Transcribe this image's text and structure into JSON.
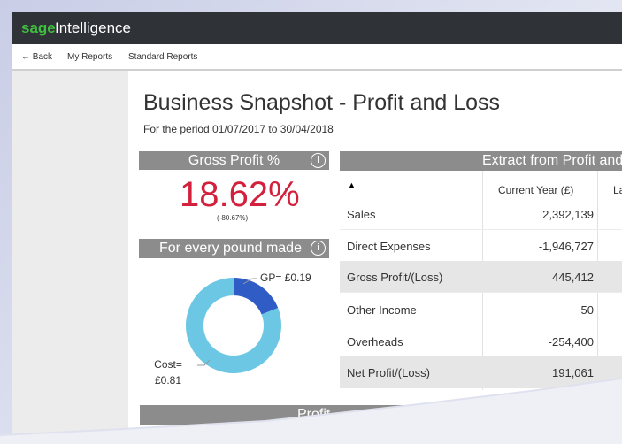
{
  "header": {
    "brand_prefix": "sage",
    "brand_suffix": "Intelligence"
  },
  "nav": [
    "← Back",
    "My Reports",
    "Standard Reports"
  ],
  "report": {
    "title": "Business Snapshot - Profit and Loss",
    "subtitle": "For the period 01/07/2017 to 30/04/2018"
  },
  "gross_profit": {
    "header": "Gross Profit %",
    "value_text": "18.62%",
    "flag": "!",
    "change": "(-80.67%)"
  },
  "pound": {
    "header": "For every pound made",
    "segments": [
      {
        "label_lines": [
          "GP= £0.19"
        ],
        "value": 0.19,
        "color": "#2f5cc5"
      },
      {
        "label_lines": [
          "Cost=",
          "£0.81"
        ],
        "value": 0.81,
        "color": "#6bc7e3"
      }
    ]
  },
  "table": {
    "header": "Extract from Profit and",
    "sort_icon": "▲",
    "columns": [
      "Current Year (£)",
      "La"
    ],
    "rows": [
      [
        "Sales",
        "2,392,139"
      ],
      [
        "Direct Expenses",
        "-1,946,727"
      ],
      [
        "Gross Profit/(Loss)",
        "445,412"
      ],
      [
        "Other Income",
        "50"
      ],
      [
        "Overheads",
        "-254,400"
      ],
      [
        "Net Profit/(Loss)",
        "191,061"
      ]
    ]
  },
  "footer_panel": {
    "header": "Profit"
  }
}
